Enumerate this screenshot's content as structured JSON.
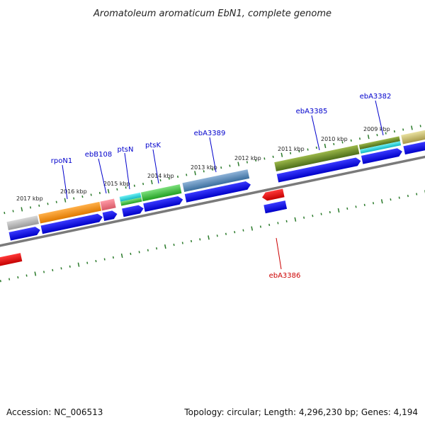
{
  "title": "Aromatoleum aromaticum EbN1, complete genome",
  "footer": {
    "accession": "Accession: NC_006513",
    "summary": "Topology: circular; Length: 4,296,230 bp; Genes: 4,194"
  },
  "scale_labels": [
    "2017 kbp",
    "2016 kbp",
    "2015 kbp",
    "2014 kbp",
    "2013 kbp",
    "2012 kbp",
    "2011 kbp",
    "2010 kbp",
    "2009 kbp"
  ],
  "gene_labels": {
    "rpoN1": "rpoN1",
    "ebB108": "ebB108",
    "ptsN": "ptsN",
    "ptsK": "ptsK",
    "ebA3389": "ebA3389",
    "ebA3385": "ebA3385",
    "ebA3382": "ebA3382",
    "ebA3386": "ebA3386"
  },
  "colors": {
    "forward_gene": "#0000ee",
    "reverse_gene": "#ee0000",
    "forward_label": "#0000cc",
    "reverse_label": "#cc0000",
    "tick": "#2a7a2a",
    "backbone": "#7a7a7a"
  }
}
